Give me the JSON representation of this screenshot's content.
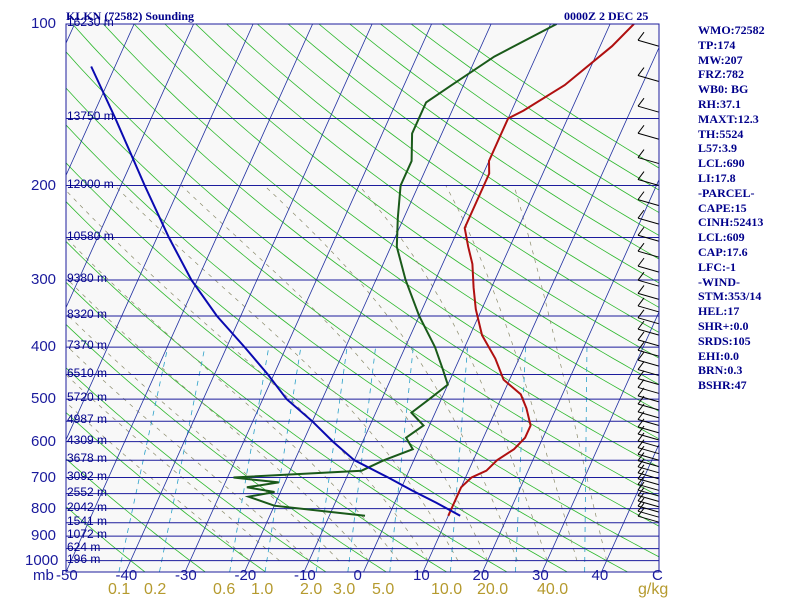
{
  "header": {
    "station": "KLKN (72582) Sounding",
    "time": "0000Z  2 DEC 25"
  },
  "stats": [
    "WMO:72582",
    "TP:174",
    "MW:207",
    "FRZ:782",
    "WB0: BG",
    "RH:37.1",
    "MAXT:12.3",
    "TH:5524",
    "L57:3.9",
    "LCL:690",
    "LI:17.8",
    "-PARCEL-",
    "CAPE:15",
    "CINH:52413",
    "LCL:609",
    "CAP:17.6",
    "LFC:-1",
    "-WIND-",
    "STM:353/14",
    "HEL:17",
    "SHR+:0.0",
    "SRDS:105",
    "EHI:0.0",
    "BRN:0.3",
    "BSHR:47"
  ],
  "chart_data": {
    "type": "line",
    "title": "KLKN (72582) Sounding",
    "pressure_unit_label": "mb",
    "mixing_ratio_unit_label": "g/kg",
    "pressure_ticks": [
      100,
      200,
      300,
      400,
      500,
      600,
      700,
      800,
      900,
      1000
    ],
    "pressure_tick_labels": [
      "100",
      "200",
      "300",
      "400",
      "500",
      "600",
      "700",
      "800",
      "900",
      "1000"
    ],
    "temperature_ticks": [
      -50,
      -40,
      -30,
      -20,
      -10,
      0,
      10,
      20,
      30,
      40
    ],
    "temperature_tick_labels": [
      "-50",
      "-40",
      "-30",
      "-20",
      "-10",
      "0",
      "10",
      "20",
      "30",
      "40"
    ],
    "temperature_range": [
      -50,
      50
    ],
    "pressure_range": [
      100,
      1050
    ],
    "mixing_ratio_labels": [
      "0.1",
      "0.2",
      "0.6",
      "1.0",
      "2.0",
      "3.0",
      "5.0",
      "10.0",
      "20.0",
      "40.0"
    ],
    "height_levels": [
      {
        "p": 100,
        "label": "16230 m"
      },
      {
        "p": 150,
        "label": "13750 m"
      },
      {
        "p": 200,
        "label": "12000 m"
      },
      {
        "p": 250,
        "label": "10580 m"
      },
      {
        "p": 300,
        "label": "9380 m"
      },
      {
        "p": 350,
        "label": "8320 m"
      },
      {
        "p": 400,
        "label": "7370 m"
      },
      {
        "p": 450,
        "label": "6510 m"
      },
      {
        "p": 500,
        "label": "5720 m"
      },
      {
        "p": 550,
        "label": "4987 m"
      },
      {
        "p": 600,
        "label": "4309 m"
      },
      {
        "p": 650,
        "label": "3678 m"
      },
      {
        "p": 700,
        "label": "3092 m"
      },
      {
        "p": 750,
        "label": "2552 m"
      },
      {
        "p": 800,
        "label": "2042 m"
      },
      {
        "p": 850,
        "label": "1541 m"
      },
      {
        "p": 900,
        "label": "1072 m"
      },
      {
        "p": 950,
        "label": "624 m"
      },
      {
        "p": 1000,
        "label": "196 m"
      }
    ],
    "series": [
      {
        "name": "temperature",
        "color": "#b01010",
        "points": [
          [
            825,
            10
          ],
          [
            800,
            10
          ],
          [
            760,
            10
          ],
          [
            730,
            10
          ],
          [
            700,
            11
          ],
          [
            680,
            13
          ],
          [
            650,
            14
          ],
          [
            620,
            16
          ],
          [
            590,
            17
          ],
          [
            560,
            17
          ],
          [
            520,
            15
          ],
          [
            490,
            13
          ],
          [
            460,
            9
          ],
          [
            420,
            6
          ],
          [
            380,
            2
          ],
          [
            340,
            -1
          ],
          [
            310,
            -3
          ],
          [
            280,
            -5
          ],
          [
            260,
            -7
          ],
          [
            240,
            -9
          ],
          [
            210,
            -9
          ],
          [
            190,
            -9
          ],
          [
            180,
            -10
          ],
          [
            160,
            -10
          ],
          [
            150,
            -10
          ],
          [
            145,
            -8
          ],
          [
            130,
            -3
          ],
          [
            110,
            2
          ],
          [
            100,
            4
          ]
        ]
      },
      {
        "name": "dewpoint",
        "color": "#1a5a1a",
        "points": [
          [
            825,
            -4
          ],
          [
            790,
            -20
          ],
          [
            760,
            -25
          ],
          [
            745,
            -21
          ],
          [
            730,
            -26
          ],
          [
            715,
            -21
          ],
          [
            700,
            -29
          ],
          [
            680,
            -8
          ],
          [
            650,
            -5
          ],
          [
            620,
            -1
          ],
          [
            590,
            -3
          ],
          [
            560,
            -1
          ],
          [
            530,
            -4
          ],
          [
            500,
            -2
          ],
          [
            470,
            0
          ],
          [
            440,
            -2
          ],
          [
            400,
            -5
          ],
          [
            350,
            -10
          ],
          [
            300,
            -15
          ],
          [
            260,
            -19
          ],
          [
            230,
            -21
          ],
          [
            200,
            -23
          ],
          [
            180,
            -23
          ],
          [
            160,
            -25
          ],
          [
            140,
            -25
          ],
          [
            130,
            -22
          ],
          [
            115,
            -17
          ],
          [
            100,
            -9
          ]
        ]
      },
      {
        "name": "parcel",
        "color": "#0a0ab0",
        "points": [
          [
            825,
            12
          ],
          [
            780,
            7
          ],
          [
            740,
            2
          ],
          [
            700,
            -3
          ],
          [
            650,
            -10
          ],
          [
            600,
            -15
          ],
          [
            550,
            -20
          ],
          [
            500,
            -26
          ],
          [
            450,
            -31
          ],
          [
            400,
            -37
          ],
          [
            350,
            -44
          ],
          [
            300,
            -51
          ],
          [
            250,
            -58
          ],
          [
            200,
            -66
          ],
          [
            150,
            -76
          ],
          [
            120,
            -84
          ]
        ]
      }
    ]
  }
}
